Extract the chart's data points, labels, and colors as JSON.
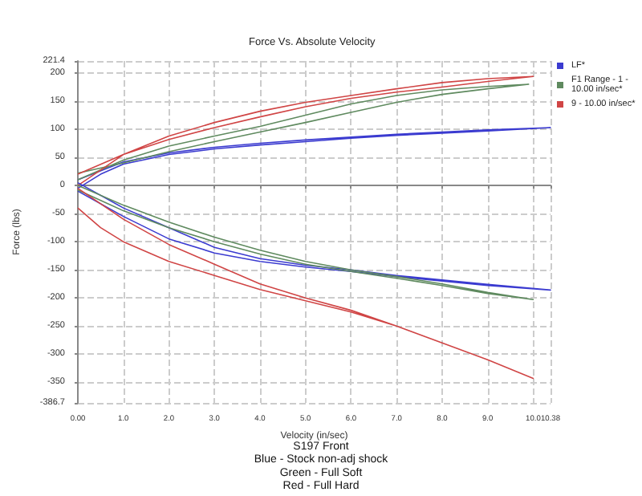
{
  "chart_data": {
    "type": "line",
    "title": "Force Vs. Absolute Velocity",
    "xlabel": "Velocity (in/sec)",
    "ylabel": "Force (lbs)",
    "xlim": [
      0,
      10.38
    ],
    "xticks": [
      {
        "value": 0,
        "label": "0.00"
      },
      {
        "value": 1,
        "label": "1.0"
      },
      {
        "value": 2,
        "label": "2.0"
      },
      {
        "value": 3,
        "label": "3.0"
      },
      {
        "value": 4,
        "label": "4.0"
      },
      {
        "value": 5,
        "label": "5.0"
      },
      {
        "value": 6,
        "label": "6.0"
      },
      {
        "value": 7,
        "label": "7.0"
      },
      {
        "value": 8,
        "label": "8.0"
      },
      {
        "value": 9,
        "label": "9.0"
      },
      {
        "value": 10,
        "label": "10.0"
      },
      {
        "value": 10.38,
        "label": "10.38"
      }
    ],
    "ylim": [
      -386.7,
      221.4
    ],
    "yticks": [
      -386.7,
      -350,
      -300,
      -250,
      -200,
      -150,
      -100,
      -50,
      0,
      50,
      100,
      150,
      200,
      221.4
    ],
    "grid": true,
    "legend": "top right",
    "marker": "none",
    "line_style": "solid",
    "annotations": [
      "S197 Front",
      "Blue - Stock non-adj shock",
      "Green - Full Soft",
      "Red - Full Hard"
    ],
    "series": [
      {
        "name": "LF*",
        "color": "#3b3bd0",
        "x": [
          0,
          0.5,
          1,
          2,
          3,
          4,
          5,
          6,
          7,
          8,
          9,
          10.38,
          9,
          8,
          7,
          6,
          5,
          4,
          3,
          2,
          1,
          0
        ],
        "values": [
          -5,
          20,
          38,
          55,
          65,
          72,
          78,
          84,
          89,
          93,
          97,
          103,
          99,
          95,
          91,
          86,
          81,
          75,
          68,
          58,
          42,
          10
        ]
      },
      {
        "name": "F1 Range - 1 - 10.00 in/sec*",
        "color": "#5f8a5f",
        "x": [
          0,
          1,
          2,
          3,
          4,
          5,
          6,
          7,
          8,
          9,
          9.9,
          9,
          8,
          7,
          6,
          5,
          4,
          3,
          2,
          1,
          0
        ],
        "values": [
          22,
          40,
          60,
          78,
          95,
          112,
          130,
          148,
          162,
          172,
          180,
          176,
          170,
          160,
          145,
          125,
          105,
          88,
          70,
          45,
          10
        ]
      },
      {
        "name": "9 - 10.00 in/sec*",
        "color": "#d04545",
        "x": [
          0,
          1,
          2,
          3,
          4,
          5,
          6,
          7,
          8,
          9,
          10,
          9,
          8,
          7,
          6,
          5,
          4,
          3,
          2,
          1,
          0
        ],
        "values": [
          20,
          55,
          82,
          103,
          122,
          140,
          155,
          166,
          175,
          185,
          194,
          190,
          183,
          172,
          160,
          148,
          132,
          112,
          88,
          55,
          0
        ]
      },
      {
        "color": "#3b3bd0",
        "x": [
          0,
          1,
          2,
          3,
          4,
          5,
          6,
          7,
          8,
          9,
          10.38,
          9,
          8,
          7,
          6,
          5,
          4,
          3,
          2,
          1,
          0
        ],
        "values": [
          5,
          -40,
          -75,
          -110,
          -130,
          -142,
          -150,
          -160,
          -168,
          -176,
          -186,
          -178,
          -170,
          -162,
          -153,
          -145,
          -135,
          -120,
          -95,
          -55,
          -10
        ]
      },
      {
        "color": "#5f8a5f",
        "x": [
          0,
          1,
          2,
          3,
          4,
          5,
          6,
          7,
          8,
          9,
          10,
          9,
          8,
          7,
          6,
          5,
          4,
          3,
          2,
          1,
          0
        ],
        "values": [
          0,
          -35,
          -65,
          -92,
          -115,
          -135,
          -150,
          -162,
          -175,
          -190,
          -203,
          -192,
          -178,
          -165,
          -153,
          -140,
          -122,
          -100,
          -75,
          -45,
          -8
        ]
      },
      {
        "color": "#d04545",
        "x": [
          0,
          0.5,
          1,
          2,
          3,
          4,
          5,
          6,
          7,
          8,
          9,
          10,
          9,
          8,
          7,
          6,
          5,
          4,
          3,
          2,
          1,
          0
        ],
        "values": [
          -40,
          -75,
          -100,
          -135,
          -160,
          -185,
          -205,
          -225,
          -250,
          -280,
          -310,
          -343,
          -310,
          -280,
          -250,
          -222,
          -200,
          -175,
          -140,
          -105,
          -60,
          -5
        ]
      }
    ]
  }
}
